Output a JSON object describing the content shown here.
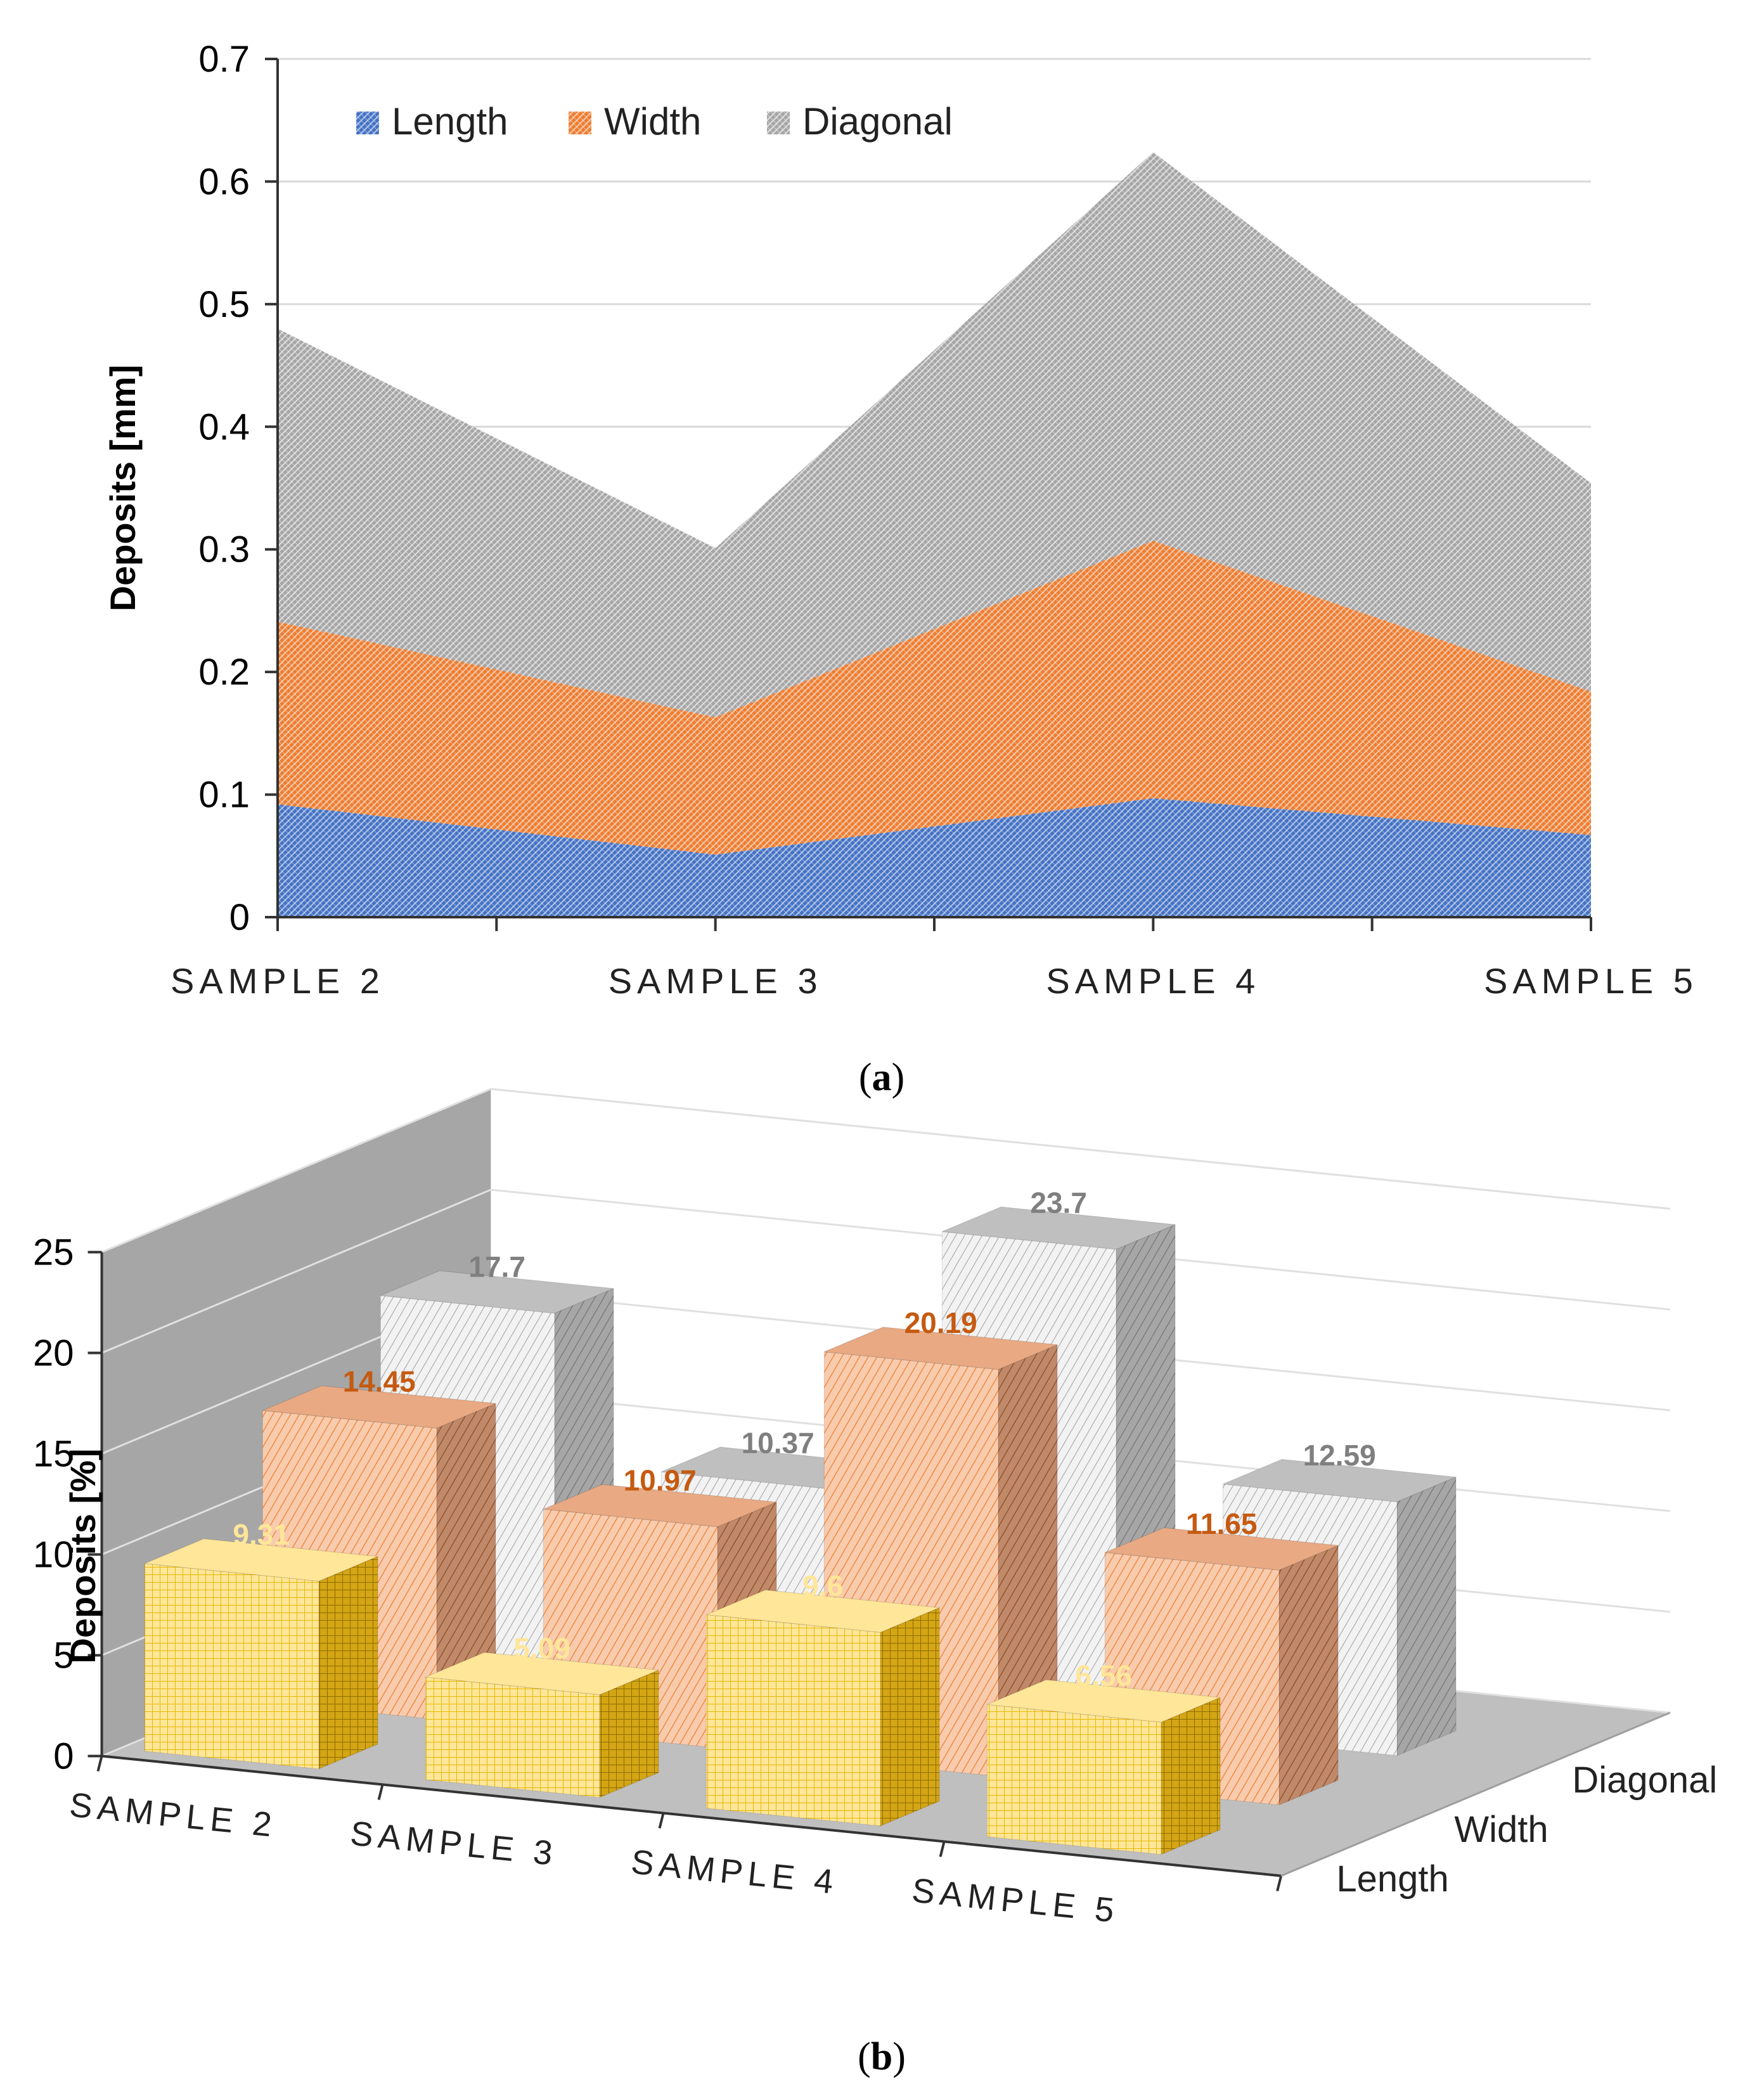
{
  "colors": {
    "length": "#4472C4",
    "width": "#ED7D31",
    "diagonal": "#A5A5A5",
    "bar_length": "#FFD966",
    "bar_width": "#F4B183",
    "bar_diagonal": "#D9D9D9",
    "label_length": "#FFE699",
    "label_width": "#C55A11",
    "label_diagonal": "#7F7F7F",
    "grid": "#D9D9D9",
    "axis": "#333333",
    "floor": "#BFBFBF",
    "wall": "#A6A6A6"
  },
  "panels": {
    "a_label": "a",
    "b_label": "b"
  },
  "chart_data": [
    {
      "type": "area",
      "stacked": true,
      "categories": [
        "SAMPLE 2",
        "SAMPLE 3",
        "SAMPLE 4",
        "SAMPLE 5"
      ],
      "series": [
        {
          "name": "Length",
          "values": [
            0.092,
            0.051,
            0.097,
            0.067
          ]
        },
        {
          "name": "Width",
          "values": [
            0.149,
            0.112,
            0.21,
            0.117
          ]
        },
        {
          "name": "Diagonal",
          "values": [
            0.239,
            0.138,
            0.317,
            0.17
          ]
        }
      ],
      "ylabel": "Deposits [mm]",
      "xlabel": "",
      "ylim": [
        0,
        0.7
      ],
      "yticks": [
        "0",
        "0.1",
        "0.2",
        "0.3",
        "0.4",
        "0.5",
        "0.6",
        "0.7"
      ],
      "grid": true,
      "legend": [
        "Length",
        "Width",
        "Diagonal"
      ],
      "legend_position": "top-left"
    },
    {
      "type": "bar",
      "style": "3d",
      "categories": [
        "SAMPLE 2",
        "SAMPLE 3",
        "SAMPLE 4",
        "SAMPLE 5"
      ],
      "series": [
        {
          "name": "Length",
          "values": [
            9.31,
            5.09,
            9.6,
            6.56
          ],
          "labels": [
            "9.31",
            "5.09",
            "9.6",
            "6.56"
          ]
        },
        {
          "name": "Width",
          "values": [
            14.45,
            10.97,
            20.19,
            11.65
          ],
          "labels": [
            "14.45",
            "10.97",
            "20.19",
            "11.65"
          ]
        },
        {
          "name": "Diagonal",
          "values": [
            17.7,
            10.37,
            23.7,
            12.59
          ],
          "labels": [
            "17.7",
            "10.37",
            "23.7",
            "12.59"
          ]
        }
      ],
      "depth_labels": [
        "Length",
        "Width",
        "Diagonal"
      ],
      "ylabel": "Deposits [%]",
      "ylim": [
        0,
        25
      ],
      "yticks": [
        "0",
        "5",
        "10",
        "15",
        "20",
        "25"
      ],
      "grid": true
    }
  ]
}
